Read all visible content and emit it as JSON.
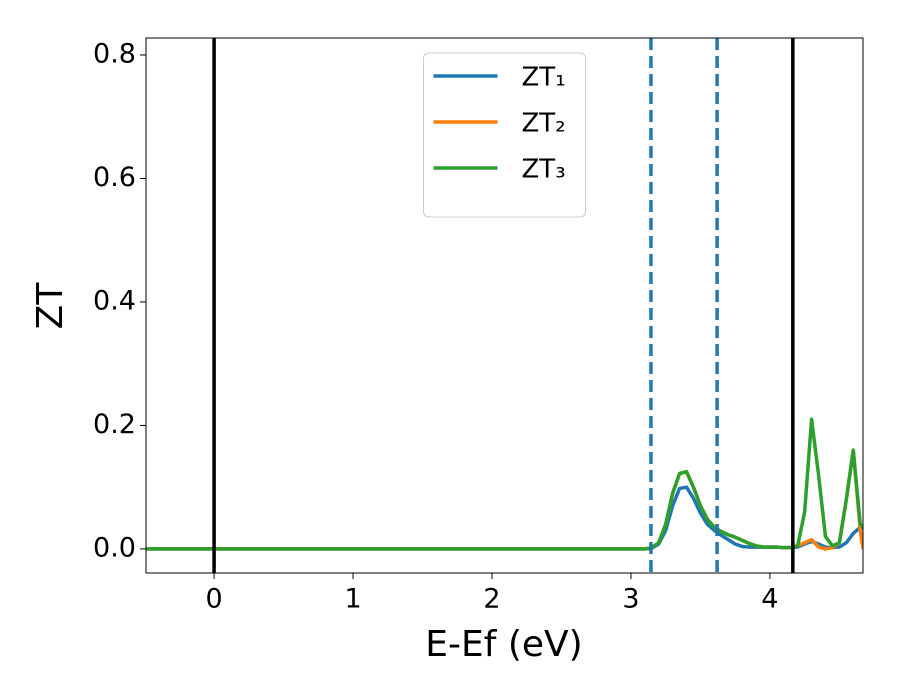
{
  "chart_data": {
    "type": "line",
    "xlabel": "E-Ef (eV)",
    "ylabel": "ZT",
    "x": [
      -0.49,
      0,
      1,
      2,
      3,
      3.1,
      3.15,
      3.2,
      3.25,
      3.3,
      3.35,
      3.4,
      3.45,
      3.5,
      3.55,
      3.6,
      3.65,
      3.7,
      3.75,
      3.8,
      3.85,
      3.9,
      3.95,
      4.0,
      4.05,
      4.1,
      4.15,
      4.2,
      4.25,
      4.3,
      4.35,
      4.4,
      4.45,
      4.5,
      4.55,
      4.6,
      4.65,
      4.67
    ],
    "series": [
      {
        "name": "ZT₁",
        "color": "#1f77b4",
        "values": [
          0,
          0,
          0,
          0,
          0,
          0,
          0.001,
          0.008,
          0.03,
          0.07,
          0.098,
          0.1,
          0.082,
          0.058,
          0.04,
          0.03,
          0.022,
          0.015,
          0.008,
          0.004,
          0.003,
          0.003,
          0.003,
          0.003,
          0.003,
          0.002,
          0.002,
          0.003,
          0.008,
          0.012,
          0.008,
          0.003,
          0.002,
          0.003,
          0.01,
          0.025,
          0.035,
          0.033
        ]
      },
      {
        "name": "ZT₂",
        "color": "#ff7f0e",
        "values": [
          0,
          0,
          0,
          0,
          0,
          0,
          0.002,
          0.01,
          0.04,
          0.09,
          0.122,
          0.125,
          0.1,
          0.07,
          0.048,
          0.035,
          0.028,
          0.023,
          0.019,
          0.014,
          0.009,
          0.005,
          0.003,
          0.003,
          0.003,
          0.002,
          0.002,
          0.005,
          0.01,
          0.015,
          0.003,
          0.0,
          0.002,
          0.01,
          0.08,
          0.16,
          0.03,
          0.0
        ]
      },
      {
        "name": "ZT₃",
        "color": "#2ca02c",
        "values": [
          0,
          0,
          0,
          0,
          0,
          0,
          0.002,
          0.01,
          0.04,
          0.09,
          0.122,
          0.125,
          0.1,
          0.07,
          0.048,
          0.035,
          0.028,
          0.023,
          0.019,
          0.014,
          0.009,
          0.005,
          0.003,
          0.003,
          0.003,
          0.002,
          0.002,
          0.005,
          0.06,
          0.21,
          0.12,
          0.02,
          0.005,
          0.01,
          0.08,
          0.16,
          0.04,
          0.035
        ]
      }
    ],
    "vlines": [
      {
        "x": 0,
        "color": "#000000",
        "style": "solid"
      },
      {
        "x": 4.165,
        "color": "#000000",
        "style": "solid"
      },
      {
        "x": 3.144,
        "color": "#1f77b4",
        "style": "dashed"
      },
      {
        "x": 3.62,
        "color": "#1f77b4",
        "style": "dashed"
      }
    ],
    "xlim": [
      -0.49,
      4.67
    ],
    "xticks": [
      0,
      1,
      2,
      3,
      4
    ],
    "ylim": [
      -0.039,
      0.8275
    ],
    "yticks": [
      {
        "value": 0,
        "label": "0.0"
      },
      {
        "value": 0.2,
        "label": "0.2"
      },
      {
        "value": 0.4,
        "label": "0.4"
      },
      {
        "value": 0.6,
        "label": "0.6"
      },
      {
        "value": 0.8,
        "label": "0.8"
      }
    ],
    "legend": "upper center"
  }
}
